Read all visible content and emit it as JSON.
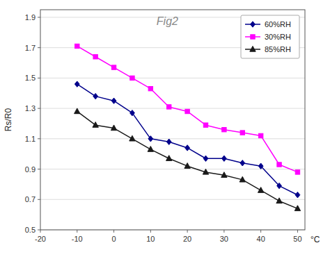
{
  "chart_data": {
    "type": "line",
    "title": "Fig2",
    "xlabel": "°C",
    "ylabel": "Rs/R0",
    "x": [
      -10,
      -5,
      0,
      5,
      10,
      15,
      20,
      25,
      30,
      35,
      40,
      45,
      50
    ],
    "series": [
      {
        "name": "60%RH",
        "color": "#00008B",
        "marker": "diamond",
        "values": [
          1.46,
          1.38,
          1.35,
          1.27,
          1.1,
          1.08,
          1.04,
          0.97,
          0.97,
          0.94,
          0.92,
          0.79,
          0.73
        ]
      },
      {
        "name": "30%RH",
        "color": "#FF00FF",
        "marker": "square",
        "values": [
          1.71,
          1.64,
          1.57,
          1.5,
          1.43,
          1.31,
          1.28,
          1.19,
          1.16,
          1.14,
          1.12,
          0.93,
          0.88
        ]
      },
      {
        "name": "85%RH",
        "color": "#1a1a1a",
        "marker": "triangle",
        "values": [
          1.28,
          1.19,
          1.17,
          1.1,
          1.03,
          0.97,
          0.92,
          0.88,
          0.86,
          0.83,
          0.76,
          0.69,
          0.64
        ]
      }
    ],
    "xlim": [
      -20,
      52
    ],
    "ylim": [
      0.5,
      1.95
    ],
    "xticks": [
      -20,
      -10,
      0,
      10,
      20,
      30,
      40,
      50
    ],
    "yticks": [
      0.5,
      0.7,
      0.9,
      1.1,
      1.3,
      1.5,
      1.7,
      1.9
    ],
    "grid": true,
    "legend": "upper right"
  }
}
